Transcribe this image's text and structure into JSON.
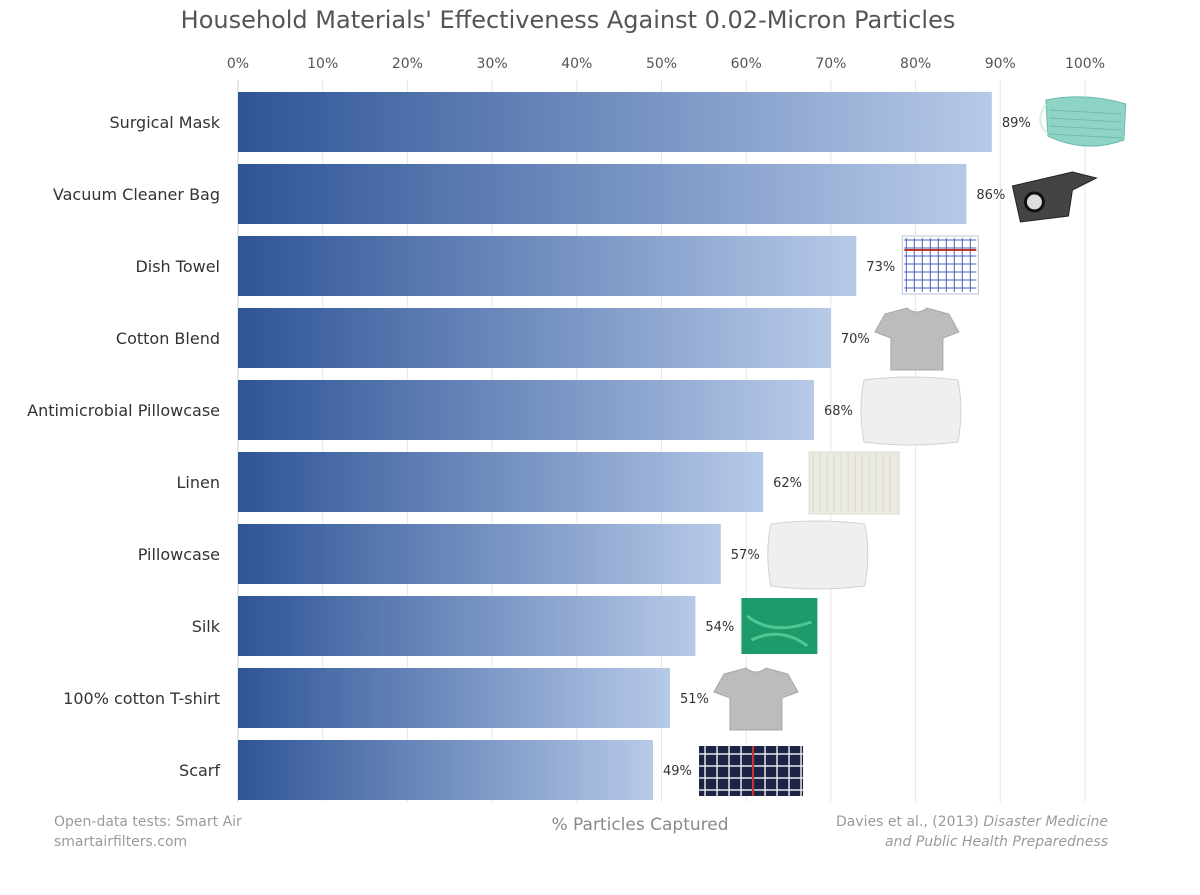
{
  "chart_data": {
    "type": "bar",
    "orientation": "horizontal",
    "title": "Household Materials' Effectiveness Against 0.02-Micron Particles",
    "xlabel": "% Particles Captured",
    "ylabel": "",
    "xlim": [
      0,
      100
    ],
    "x_ticks": [
      "0%",
      "10%",
      "20%",
      "30%",
      "40%",
      "50%",
      "60%",
      "70%",
      "80%",
      "90%",
      "100%"
    ],
    "grid": true,
    "categories": [
      "Surgical Mask",
      "Vacuum Cleaner Bag",
      "Dish Towel",
      "Cotton Blend",
      "Antimicrobial Pillowcase",
      "Linen",
      "Pillowcase",
      "Silk",
      "100% cotton T-shirt",
      "Scarf"
    ],
    "values": [
      89,
      86,
      73,
      70,
      68,
      62,
      57,
      54,
      51,
      49
    ],
    "value_labels": [
      "89%",
      "86%",
      "73%",
      "70%",
      "68%",
      "62%",
      "57%",
      "54%",
      "51%",
      "49%"
    ],
    "icons": [
      "surgical-mask-icon",
      "vacuum-bag-icon",
      "dish-towel-icon",
      "cotton-tshirt-icon",
      "pillow-icon",
      "linen-swatch-icon",
      "pillow-icon",
      "silk-cloth-icon",
      "tshirt-icon",
      "plaid-scarf-icon"
    ],
    "colors": {
      "bar_start": "#2f5597",
      "bar_end": "#b6c9e8",
      "grid": "#e6e6e6"
    }
  },
  "footer": {
    "source_left_line1": "Open-data tests: Smart Air",
    "source_left_line2": "smartairfilters.com",
    "source_right_line1_plain": "Davies et al., (2013) ",
    "source_right_line1_italic": "Disaster Medicine",
    "source_right_line2_italic": "and Public Health Preparedness"
  }
}
